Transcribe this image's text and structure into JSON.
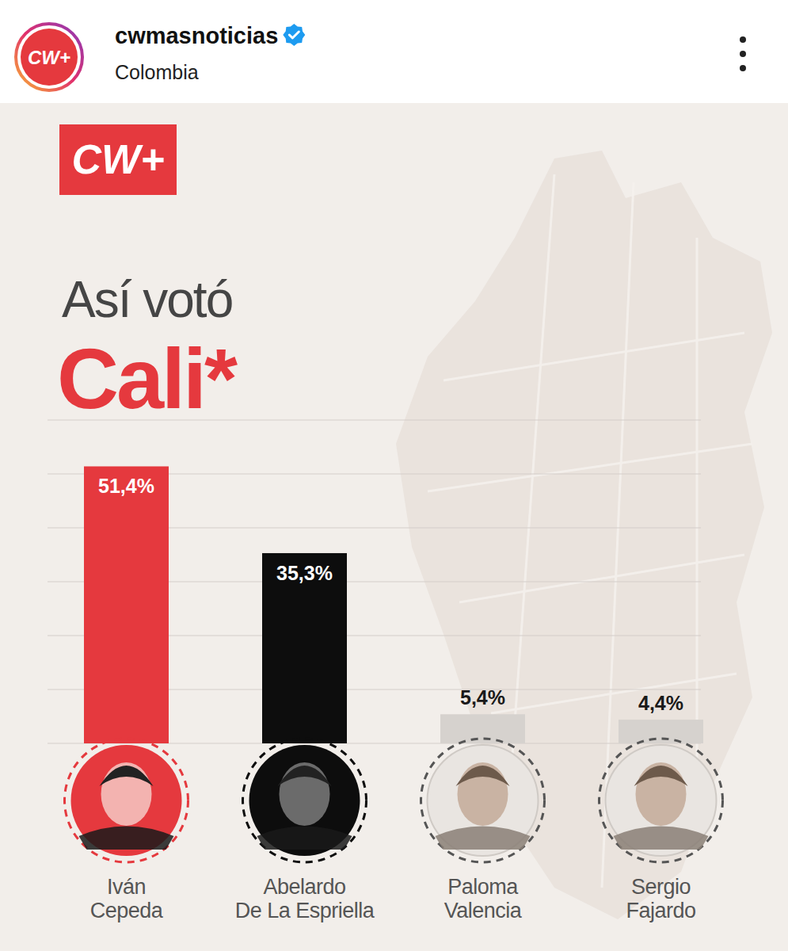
{
  "post": {
    "account": "cwmasnoticias",
    "location": "Colombia",
    "logo": "CW+"
  },
  "chart_data": {
    "type": "bar",
    "title": "Así votó Cali*",
    "categories": [
      "Iván Cepeda",
      "Abelardo De La Espriella",
      "Paloma Valencia",
      "Sergio Fajardo"
    ],
    "values": [
      51.4,
      35.3,
      5.4,
      4.4
    ],
    "value_labels": [
      "51,4%",
      "35,3%",
      "5,4%",
      "4,4%"
    ],
    "colors": [
      "#e5393e",
      "#0d0d0d",
      "#d6d2ce",
      "#d6d2ce"
    ],
    "ylim": [
      0,
      60
    ],
    "yticks": [
      0,
      10,
      20,
      30,
      40,
      50,
      60
    ],
    "grid": true,
    "data_labels": true,
    "tick_labels": false
  }
}
